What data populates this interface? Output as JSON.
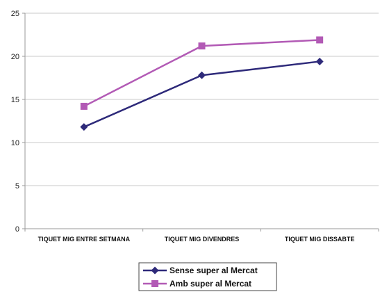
{
  "chart_data": {
    "type": "line",
    "title": "",
    "xlabel": "",
    "ylabel": "",
    "categories": [
      "TIQUET MIG ENTRE SETMANA",
      "TIQUET MIG DIVENDRES",
      "TIQUET MIG DISSABTE"
    ],
    "ylim": [
      0,
      25
    ],
    "yticks": [
      "0",
      "5",
      "10",
      "15",
      "20",
      "25"
    ],
    "grid": true,
    "legend_position": "bottom",
    "series": [
      {
        "name": "Sense super al Mercat",
        "values": [
          11.8,
          17.8,
          19.4
        ],
        "color": "#2e2a7a",
        "marker": "diamond"
      },
      {
        "name": "Amb super al Mercat",
        "values": [
          14.2,
          21.2,
          21.9
        ],
        "color": "#b25ab5",
        "marker": "square"
      }
    ]
  }
}
